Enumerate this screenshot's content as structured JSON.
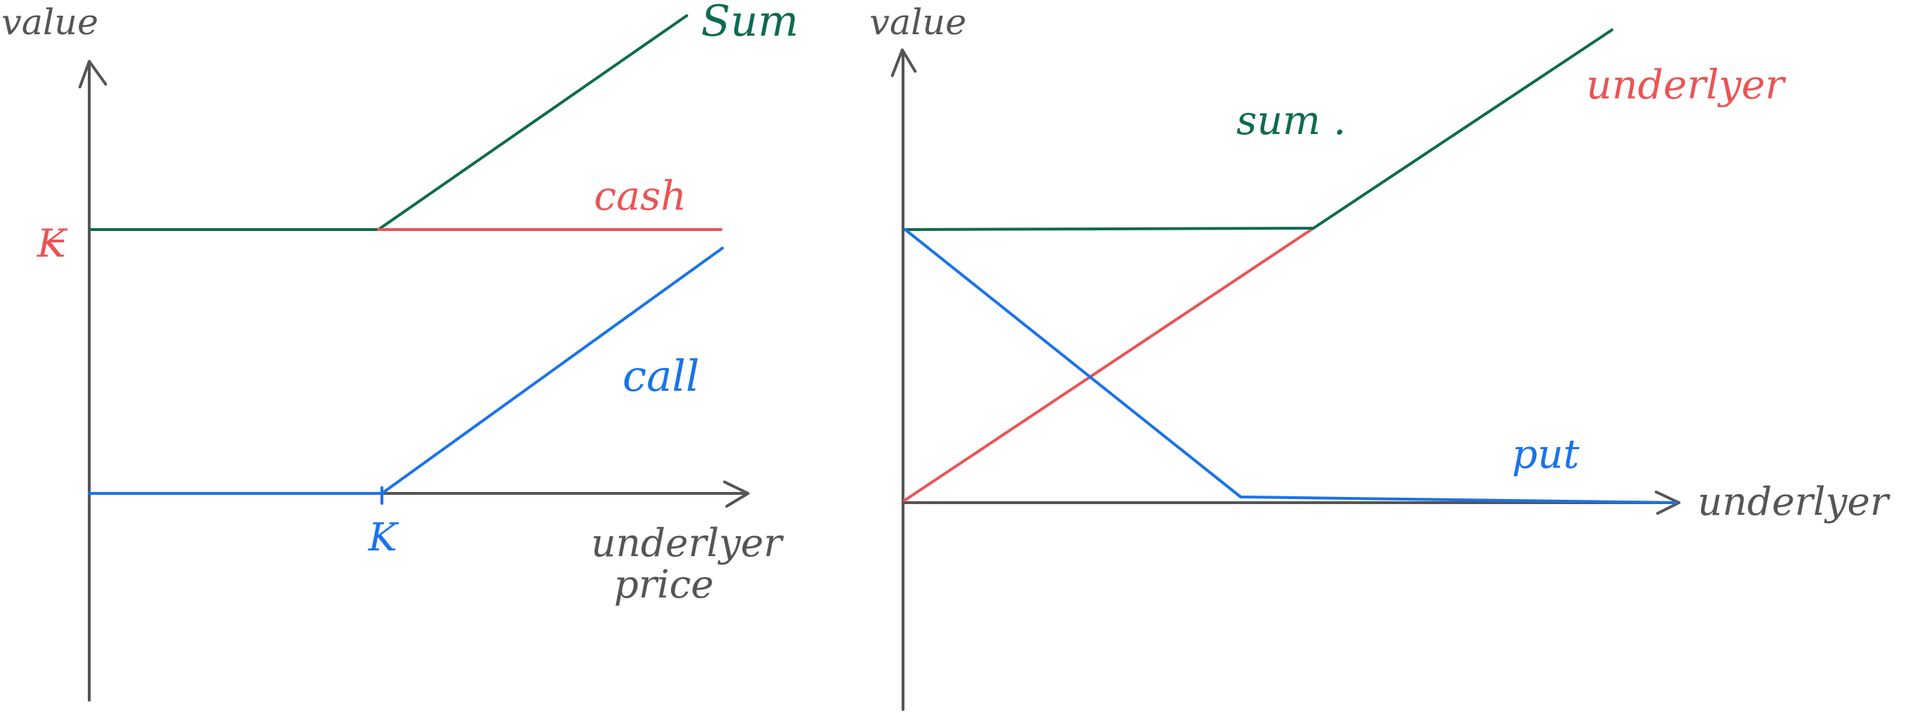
{
  "colors": {
    "axis": "#555555",
    "sum": "#0e6b4f",
    "cash": "#ea5455",
    "call": "#1a73e8",
    "underlying": "#ea5455",
    "put": "#1a73e8"
  },
  "left_diagram": {
    "y_axis_label": "value",
    "x_axis_label_line1": "underlyer",
    "x_axis_label_line2": "price",
    "strike_y_label": "K",
    "strike_x_label": "K",
    "sum_label": "Sum",
    "cash_label": "cash",
    "call_label": "call"
  },
  "right_diagram": {
    "y_axis_label": "value",
    "x_axis_label": "underlyer",
    "sum_label": "sum .",
    "underlying_label": "underlyer",
    "put_label": "put"
  }
}
